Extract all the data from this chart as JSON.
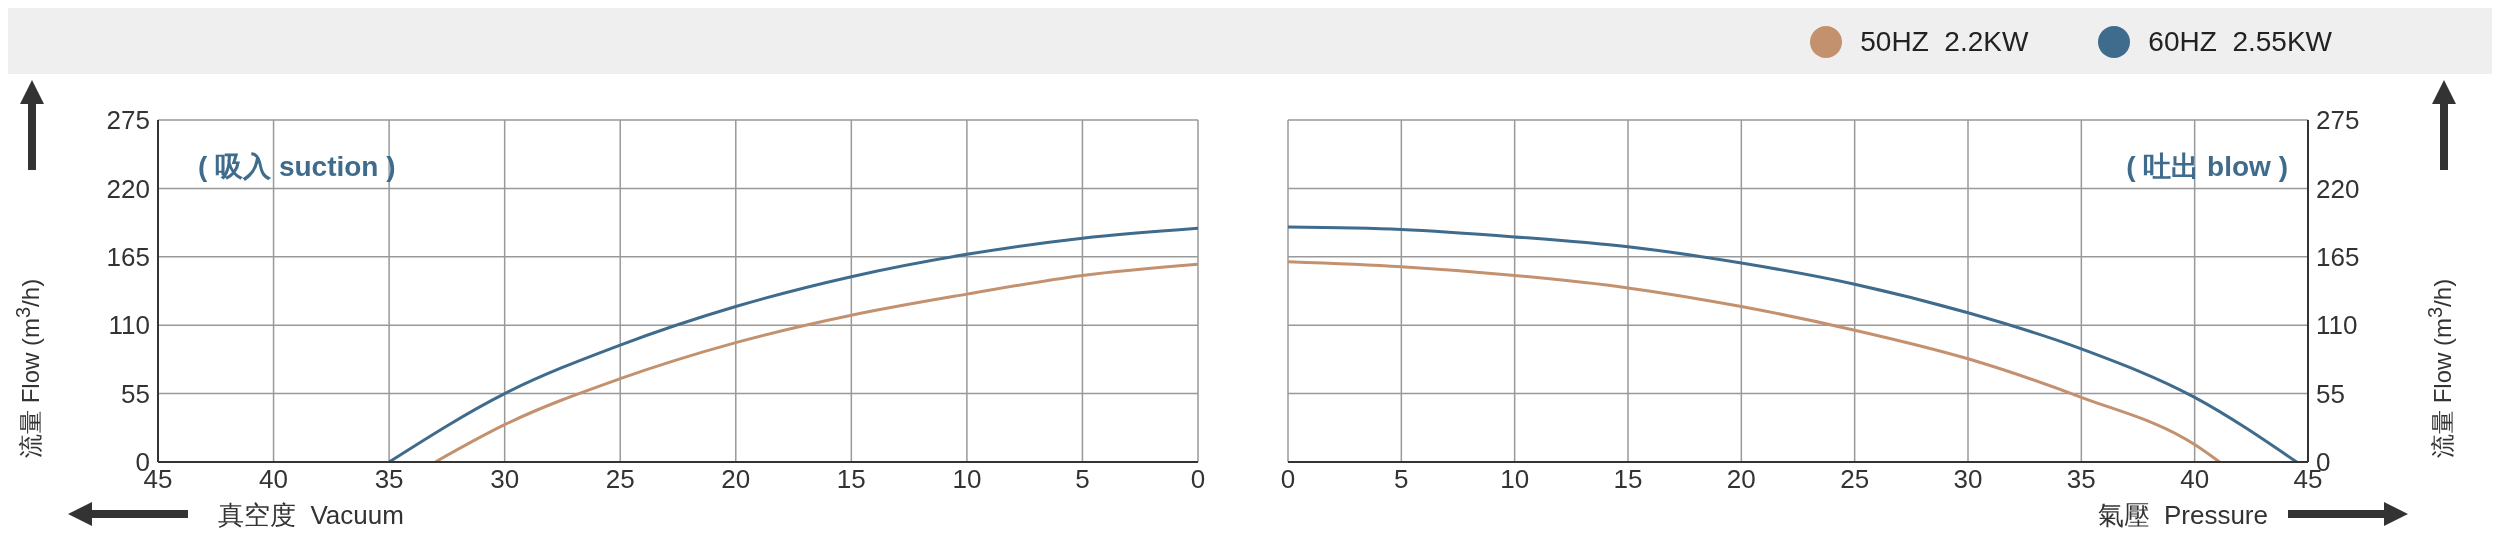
{
  "chart_data": [
    {
      "type": "line",
      "xlabel": "真空度  Vacuum",
      "ylabel": "流量 Flow (m$^{3}$/h)",
      "annotations": [
        "( 吸入 suction )"
      ],
      "xlim": [
        45,
        0
      ],
      "xticks": [
        45,
        40,
        35,
        30,
        25,
        20,
        15,
        10,
        5,
        0
      ],
      "ylim": [
        0,
        275
      ],
      "yticks": [
        0,
        55,
        110,
        165,
        220,
        275
      ],
      "grid": true,
      "marker": "none",
      "series": [
        {
          "color": "#c4916f",
          "x": [
            33,
            30,
            25,
            20,
            15,
            10,
            5,
            0
          ],
          "values": [
            0,
            30,
            67,
            96,
            118,
            135,
            150,
            159
          ]
        },
        {
          "color": "#3f6b8c",
          "x": [
            35,
            30,
            25,
            20,
            15,
            10,
            5,
            0
          ],
          "values": [
            0,
            55,
            94,
            125,
            149,
            167,
            180,
            188
          ]
        }
      ]
    },
    {
      "type": "line",
      "xlabel": "氣壓  Pressure",
      "ylabel": "流量 Flow (m$^{3}$/h)",
      "annotations": [
        "( 吐出 blow )"
      ],
      "xlim": [
        0,
        45
      ],
      "xticks": [
        0,
        5,
        10,
        15,
        20,
        25,
        30,
        35,
        40,
        45
      ],
      "ylim": [
        0,
        275
      ],
      "yticks": [
        0,
        55,
        110,
        165,
        220,
        275
      ],
      "grid": true,
      "marker": "none",
      "legend": "top right",
      "series": [
        {
          "name": "50HZ  2.2KW",
          "color": "#c4916f",
          "x": [
            0,
            5,
            10,
            15,
            20,
            25,
            30,
            35,
            40,
            41.1
          ],
          "values": [
            161,
            157,
            150,
            140,
            125,
            106,
            83,
            52,
            14,
            0
          ]
        },
        {
          "name": "60HZ  2.55KW",
          "color": "#3f6b8c",
          "x": [
            0,
            5,
            10,
            15,
            20,
            25,
            30,
            35,
            40,
            44.5
          ],
          "values": [
            189,
            187,
            181,
            173,
            160,
            143,
            120,
            91,
            52,
            0
          ]
        }
      ]
    }
  ]
}
